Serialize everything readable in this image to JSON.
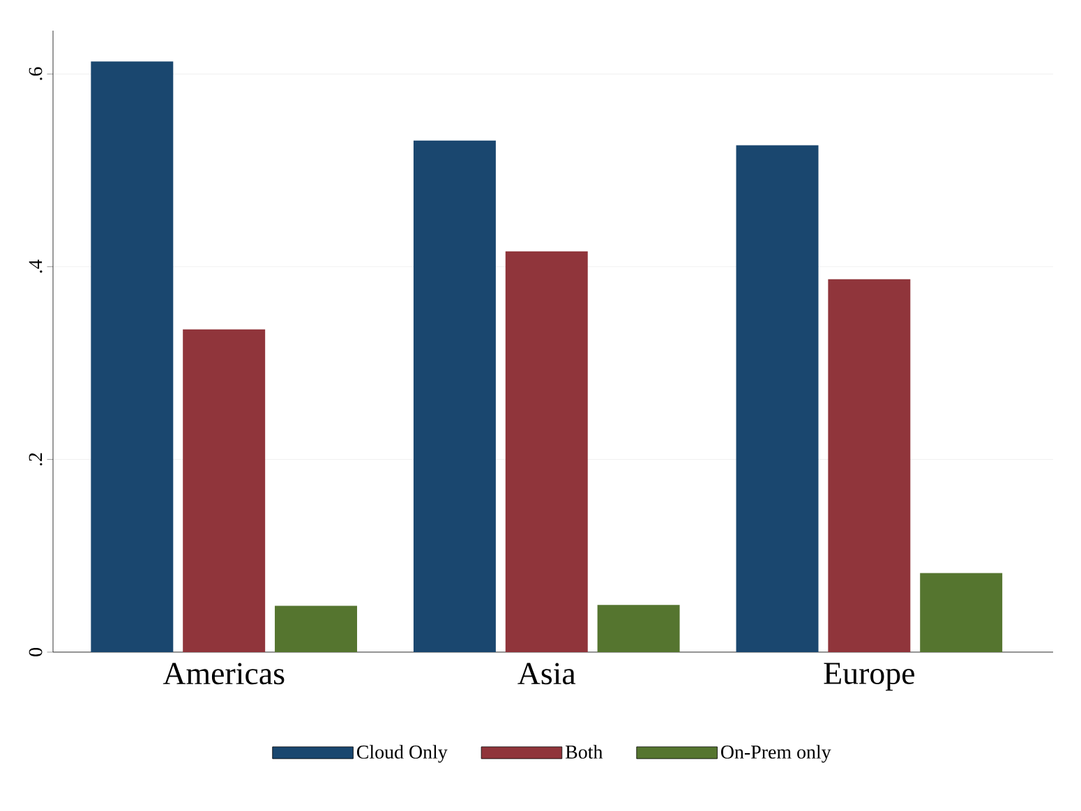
{
  "chart_data": {
    "type": "bar",
    "categories": [
      "Americas",
      "Asia",
      "Europe"
    ],
    "series": [
      {
        "name": "Cloud Only",
        "color": "#1a476f",
        "values": [
          0.613,
          0.531,
          0.526
        ]
      },
      {
        "name": "Both",
        "color": "#90353b",
        "values": [
          0.335,
          0.416,
          0.387
        ]
      },
      {
        "name": "On-Prem only",
        "color": "#55752f",
        "values": [
          0.048,
          0.049,
          0.082
        ]
      }
    ],
    "ylim": [
      0,
      0.645
    ],
    "yticks": [
      {
        "value": 0,
        "label": "0"
      },
      {
        "value": 0.2,
        "label": ".2"
      },
      {
        "value": 0.4,
        "label": ".4"
      },
      {
        "value": 0.6,
        "label": ".6"
      }
    ],
    "grid": "y",
    "legend": "bottom"
  }
}
